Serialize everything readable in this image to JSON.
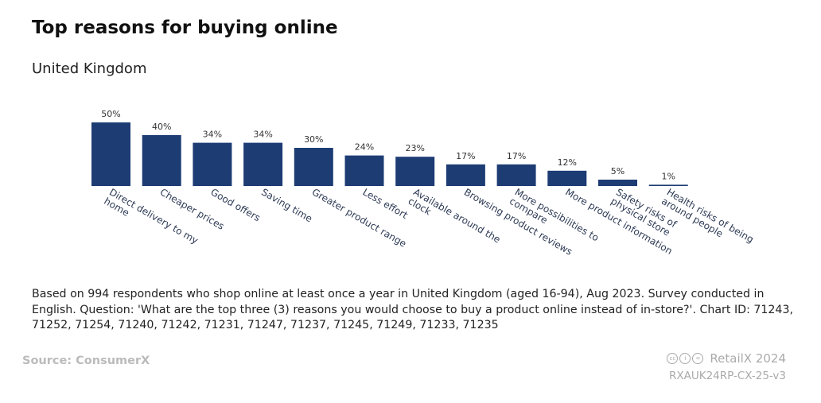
{
  "chart_data": {
    "type": "bar",
    "title": "Top reasons for buying online",
    "subtitle": "United Kingdom",
    "categories": [
      "Direct delivery to my home",
      "Cheaper prices",
      "Good offers",
      "Saving time",
      "Greater product range",
      "Less effort",
      "Available around the clock",
      "Browsing product reviews",
      "More possibilities to compare",
      "More product information",
      "Safety risks of physical store",
      "Health risks of being around people"
    ],
    "values": [
      50,
      40,
      34,
      34,
      30,
      24,
      23,
      17,
      17,
      12,
      5,
      1
    ],
    "data_labels": [
      "50%",
      "40%",
      "34%",
      "34%",
      "30%",
      "24%",
      "23%",
      "17%",
      "17%",
      "12%",
      "5%",
      "1%"
    ],
    "unit": "%",
    "ylim": [
      0,
      50
    ],
    "grid": false,
    "bar_color": "#1d3c74"
  },
  "note": "Based on 994 respondents who shop online at least once a year in United Kingdom (aged 16-94), Aug 2023. Survey conducted in English. Question: 'What are the top three (3) reasons you would choose to buy a product online instead of in-store?'. Chart ID: 71243, 71252, 71254, 71240, 71242, 71231, 71247, 71237, 71245, 71249, 71233, 71235",
  "source": "Source: ConsumerX",
  "brand": "RetailX 2024",
  "code": "RXAUK24RP-CX-25-v3",
  "license_icons": [
    "cc-icon",
    "by-icon",
    "nd-icon"
  ]
}
